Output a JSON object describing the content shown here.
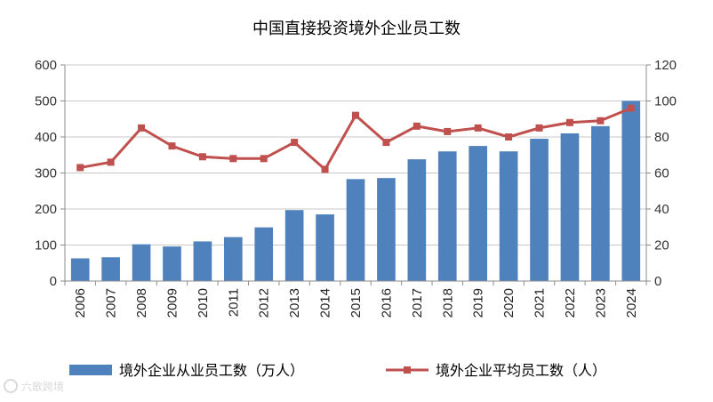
{
  "chart_data": {
    "type": "bar+line",
    "title": "中国直接投资境外企业员工数",
    "categories": [
      "2006",
      "2007",
      "2008",
      "2009",
      "2010",
      "2011",
      "2012",
      "2013",
      "2014",
      "2015",
      "2016",
      "2017",
      "2018",
      "2019",
      "2020",
      "2021",
      "2022",
      "2023",
      "2024"
    ],
    "series": [
      {
        "name": "境外企业从业员工数（万人）",
        "type": "bar",
        "axis": "left",
        "color": "#4F81BD",
        "values": [
          63,
          66,
          102,
          96,
          110,
          122,
          149,
          197,
          185,
          283,
          286,
          338,
          360,
          375,
          360,
          395,
          410,
          430,
          500
        ]
      },
      {
        "name": "境外企业平均员工数（人）",
        "type": "line",
        "axis": "right",
        "color": "#C0504D",
        "values": [
          63,
          66,
          85,
          75,
          69,
          68,
          68,
          77,
          62,
          92,
          77,
          86,
          83,
          85,
          80,
          85,
          88,
          89,
          96
        ]
      }
    ],
    "y_left": {
      "min": 0,
      "max": 600,
      "ticks": [
        0,
        100,
        200,
        300,
        400,
        500,
        600
      ]
    },
    "y_right": {
      "min": 0,
      "max": 120,
      "ticks": [
        0,
        20,
        40,
        60,
        80,
        100,
        120
      ]
    },
    "grid": true,
    "legend_position": "bottom"
  },
  "watermark": "六歌跨境"
}
